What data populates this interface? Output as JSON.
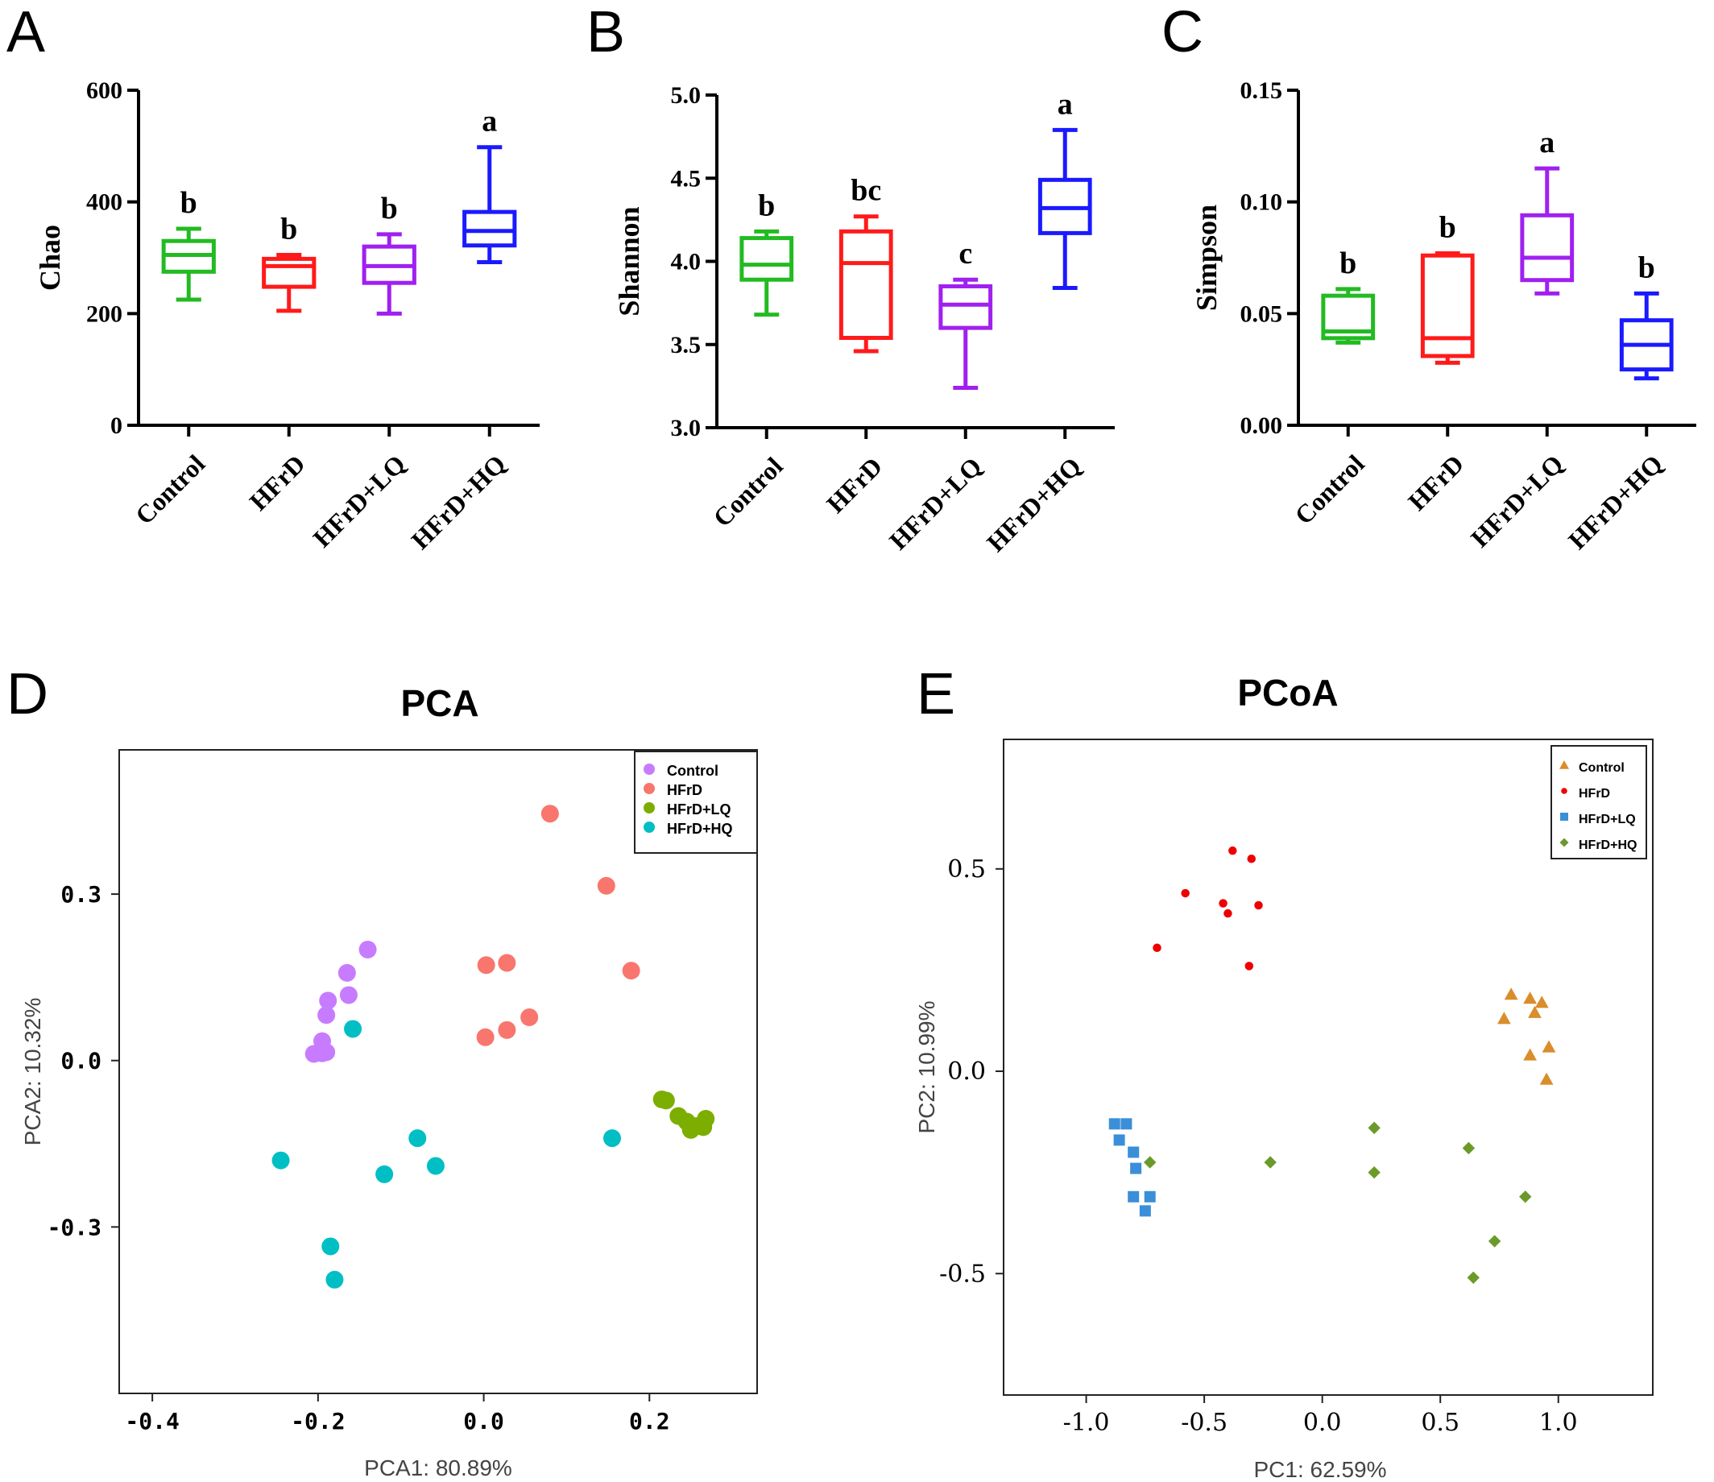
{
  "panel_letters": [
    "A",
    "B",
    "C",
    "D",
    "E"
  ],
  "chart_data": [
    {
      "type": "box",
      "panel": "A",
      "ylabel": "Chao",
      "ylim": [
        0,
        600
      ],
      "yticks": [
        0,
        200,
        400,
        600
      ],
      "categories": [
        "Control",
        "HFrD",
        "HFrD+LQ",
        "HFrD+HQ"
      ],
      "colors": [
        "#22bb22",
        "#ff1a1a",
        "#a020f0",
        "#1a1aff"
      ],
      "boxes": [
        {
          "min": 225,
          "q1": 275,
          "median": 305,
          "q3": 330,
          "max": 352
        },
        {
          "min": 205,
          "q1": 248,
          "median": 285,
          "q3": 298,
          "max": 305
        },
        {
          "min": 200,
          "q1": 255,
          "median": 285,
          "q3": 320,
          "max": 342
        },
        {
          "min": 292,
          "q1": 322,
          "median": 348,
          "q3": 382,
          "max": 498
        }
      ],
      "letters": [
        "b",
        "b",
        "b",
        "a"
      ]
    },
    {
      "type": "box",
      "panel": "B",
      "ylabel": "Shannon",
      "ylim": [
        3.0,
        5.0
      ],
      "yticks": [
        "3.0",
        "3.5",
        "4.0",
        "4.5",
        "5.0"
      ],
      "categories": [
        "Control",
        "HFrD",
        "HFrD+LQ",
        "HFrD+HQ"
      ],
      "colors": [
        "#22bb22",
        "#ff1a1a",
        "#a020f0",
        "#1a1aff"
      ],
      "boxes": [
        {
          "min": 3.68,
          "q1": 3.89,
          "median": 3.98,
          "q3": 4.14,
          "max": 4.18
        },
        {
          "min": 3.46,
          "q1": 3.54,
          "median": 3.99,
          "q3": 4.18,
          "max": 4.27
        },
        {
          "min": 3.24,
          "q1": 3.6,
          "median": 3.74,
          "q3": 3.85,
          "max": 3.89
        },
        {
          "min": 3.84,
          "q1": 4.17,
          "median": 4.32,
          "q3": 4.49,
          "max": 4.79
        }
      ],
      "letters": [
        "b",
        "bc",
        "c",
        "a"
      ]
    },
    {
      "type": "box",
      "panel": "C",
      "ylabel": "Simpson",
      "ylim": [
        0,
        0.15
      ],
      "yticks": [
        "0.00",
        "0.05",
        "0.10",
        "0.15"
      ],
      "categories": [
        "Control",
        "HFrD",
        "HFrD+LQ",
        "HFrD+HQ"
      ],
      "colors": [
        "#22bb22",
        "#ff1a1a",
        "#a020f0",
        "#1a1aff"
      ],
      "boxes": [
        {
          "min": 0.037,
          "q1": 0.039,
          "median": 0.042,
          "q3": 0.058,
          "max": 0.061
        },
        {
          "min": 0.028,
          "q1": 0.031,
          "median": 0.039,
          "q3": 0.076,
          "max": 0.077
        },
        {
          "min": 0.059,
          "q1": 0.065,
          "median": 0.075,
          "q3": 0.094,
          "max": 0.115
        },
        {
          "min": 0.021,
          "q1": 0.025,
          "median": 0.036,
          "q3": 0.047,
          "max": 0.059
        }
      ],
      "letters": [
        "b",
        "b",
        "a",
        "b"
      ]
    },
    {
      "type": "scatter",
      "panel": "D",
      "title": "PCA",
      "xlabel": "PCA1: 80.89%",
      "ylabel": "PCA2: 10.32%",
      "xlim": [
        -0.44,
        0.33
      ],
      "ylim": [
        -0.6,
        0.56
      ],
      "xticks": [
        "-0.4",
        "-0.2",
        "0.0",
        "0.2"
      ],
      "yticks": [
        "-0.3",
        "0.0",
        "0.3"
      ],
      "legend_position": "top-right",
      "series": [
        {
          "name": "Control",
          "color": "#c77cff",
          "marker": "circle",
          "points": [
            [
              -0.14,
              0.2
            ],
            [
              -0.165,
              0.158
            ],
            [
              -0.163,
              0.118
            ],
            [
              -0.188,
              0.108
            ],
            [
              -0.19,
              0.082
            ],
            [
              -0.195,
              0.035
            ],
            [
              -0.205,
              0.012
            ],
            [
              -0.195,
              0.013
            ],
            [
              -0.19,
              0.015
            ]
          ]
        },
        {
          "name": "HFrD",
          "color": "#f8766d",
          "marker": "circle",
          "points": [
            [
              0.08,
              0.445
            ],
            [
              0.148,
              0.315
            ],
            [
              0.178,
              0.162
            ],
            [
              0.003,
              0.172
            ],
            [
              0.028,
              0.176
            ],
            [
              0.002,
              0.042
            ],
            [
              0.028,
              0.055
            ],
            [
              0.055,
              0.078
            ]
          ]
        },
        {
          "name": "HFrD+LQ",
          "color": "#7cae00",
          "marker": "circle",
          "points": [
            [
              0.215,
              -0.07
            ],
            [
              0.22,
              -0.072
            ],
            [
              0.235,
              -0.1
            ],
            [
              0.245,
              -0.11
            ],
            [
              0.25,
              -0.125
            ],
            [
              0.258,
              -0.118
            ],
            [
              0.265,
              -0.12
            ],
            [
              0.268,
              -0.105
            ],
            [
              0.248,
              -0.115
            ]
          ]
        },
        {
          "name": "HFrD+HQ",
          "color": "#00bfc4",
          "marker": "circle",
          "points": [
            [
              -0.158,
              0.057
            ],
            [
              -0.245,
              -0.18
            ],
            [
              -0.185,
              -0.335
            ],
            [
              -0.18,
              -0.395
            ],
            [
              -0.12,
              -0.205
            ],
            [
              -0.08,
              -0.14
            ],
            [
              -0.058,
              -0.19
            ],
            [
              0.155,
              -0.14
            ]
          ]
        }
      ]
    },
    {
      "type": "scatter",
      "panel": "E",
      "title": "PCoA",
      "xlabel": "PC1: 62.59%",
      "ylabel": "PC2: 10.99%",
      "xlim": [
        -1.35,
        1.4
      ],
      "ylim": [
        -0.8,
        0.82
      ],
      "xticks": [
        "-1.0",
        "-0.5",
        "0.0",
        "0.5",
        "1.0"
      ],
      "yticks": [
        "-0.5",
        "0.0",
        "0.5"
      ],
      "legend_position": "top-right",
      "series": [
        {
          "name": "Control",
          "color": "#d98d2b",
          "marker": "triangle",
          "points": [
            [
              0.8,
              0.19
            ],
            [
              0.88,
              0.18
            ],
            [
              0.93,
              0.17
            ],
            [
              0.77,
              0.13
            ],
            [
              0.9,
              0.145
            ],
            [
              0.96,
              0.06
            ],
            [
              0.88,
              0.04
            ],
            [
              0.95,
              -0.02
            ]
          ]
        },
        {
          "name": "HFrD",
          "color": "#ee0000",
          "marker": "dot",
          "points": [
            [
              -0.38,
              0.545
            ],
            [
              -0.3,
              0.525
            ],
            [
              -0.58,
              0.44
            ],
            [
              -0.42,
              0.415
            ],
            [
              -0.27,
              0.41
            ],
            [
              -0.4,
              0.39
            ],
            [
              -0.7,
              0.305
            ],
            [
              -0.31,
              0.26
            ]
          ]
        },
        {
          "name": "HFrD+LQ",
          "color": "#3b8fd8",
          "marker": "square",
          "points": [
            [
              -0.88,
              -0.13
            ],
            [
              -0.83,
              -0.13
            ],
            [
              -0.86,
              -0.17
            ],
            [
              -0.8,
              -0.2
            ],
            [
              -0.79,
              -0.24
            ],
            [
              -0.8,
              -0.31
            ],
            [
              -0.73,
              -0.31
            ],
            [
              -0.75,
              -0.345
            ]
          ]
        },
        {
          "name": "HFrD+HQ",
          "color": "#6b9a2b",
          "marker": "diamond",
          "points": [
            [
              -0.73,
              -0.225
            ],
            [
              -0.22,
              -0.225
            ],
            [
              0.22,
              -0.14
            ],
            [
              0.22,
              -0.25
            ],
            [
              0.62,
              -0.19
            ],
            [
              0.86,
              -0.31
            ],
            [
              0.73,
              -0.42
            ],
            [
              0.64,
              -0.51
            ]
          ]
        }
      ]
    }
  ]
}
